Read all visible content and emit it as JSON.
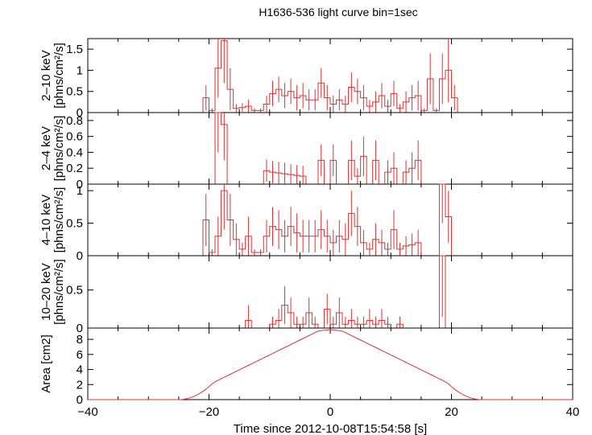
{
  "chart_data": {
    "type": "line",
    "title": "H1636-536 light curve bin=1sec",
    "xlabel": "Time since 2012-10-08T15:54:58 [s]",
    "xlim": [
      -40,
      40
    ],
    "xticks": [
      -40,
      -20,
      0,
      20,
      40
    ],
    "color": "#e03030",
    "panels": [
      {
        "ylabel_top": "[phhns/cm²/s]",
        "ylabel": "2–10 keV",
        "unit": "[phns/cm²/s]",
        "ylim": [
          0,
          1.75
        ],
        "yticks": [
          0,
          0.5,
          1,
          1.5
        ],
        "yticklabels": [
          "0",
          "0.5",
          "1",
          "1.5"
        ],
        "series": [
          {
            "t": -21,
            "v": 0.35,
            "e": 0.3
          },
          {
            "t": -20,
            "v": 0.05,
            "e": 0.05
          },
          {
            "t": -19,
            "v": 1.05,
            "e": 0.7
          },
          {
            "t": -18,
            "v": 1.7,
            "e": 1.0
          },
          {
            "t": -17,
            "v": 0.55,
            "e": 0.5
          },
          {
            "t": -16,
            "v": 0.1,
            "e": 0.1
          },
          {
            "t": -15,
            "v": 0.12,
            "e": 0.1
          },
          {
            "t": -14,
            "v": 0.15,
            "e": 0.15
          },
          {
            "t": -13,
            "v": 0.05,
            "e": 0.05
          },
          {
            "t": -12,
            "v": 0.05,
            "e": 0.05
          },
          {
            "t": -11,
            "v": 0.2,
            "e": 0.2
          },
          {
            "t": -10,
            "v": 0.45,
            "e": 0.3
          },
          {
            "t": -9,
            "v": 0.55,
            "e": 0.3
          },
          {
            "t": -8,
            "v": 0.4,
            "e": 0.3
          },
          {
            "t": -7,
            "v": 0.5,
            "e": 0.3
          },
          {
            "t": -6,
            "v": 0.35,
            "e": 0.3
          },
          {
            "t": -5,
            "v": 0.4,
            "e": 0.3
          },
          {
            "t": -4,
            "v": 0.3,
            "e": 0.25
          },
          {
            "t": -3,
            "v": 0.3,
            "e": 0.25
          },
          {
            "t": -2,
            "v": 0.7,
            "e": 0.35
          },
          {
            "t": -1,
            "v": 0.35,
            "e": 0.3
          },
          {
            "t": 0,
            "v": 0.2,
            "e": 0.2
          },
          {
            "t": 1,
            "v": 0.3,
            "e": 0.25
          },
          {
            "t": 2,
            "v": 0.2,
            "e": 0.2
          },
          {
            "t": 3,
            "v": 0.6,
            "e": 0.35
          },
          {
            "t": 4,
            "v": 0.5,
            "e": 0.3
          },
          {
            "t": 5,
            "v": 0.35,
            "e": 0.3
          },
          {
            "t": 6,
            "v": 0.15,
            "e": 0.15
          },
          {
            "t": 7,
            "v": 0.25,
            "e": 0.25
          },
          {
            "t": 8,
            "v": 0.4,
            "e": 0.3
          },
          {
            "t": 9,
            "v": 0.15,
            "e": 0.15
          },
          {
            "t": 10,
            "v": 0.45,
            "e": 0.3
          },
          {
            "t": 11,
            "v": 0.1,
            "e": 0.1
          },
          {
            "t": 12,
            "v": 0.25,
            "e": 0.25
          },
          {
            "t": 13,
            "v": 0.35,
            "e": 0.3
          },
          {
            "t": 14,
            "v": 0.4,
            "e": 0.35
          },
          {
            "t": 15,
            "v": 0.05,
            "e": 0.05
          },
          {
            "t": 16,
            "v": 0.8,
            "e": 0.6
          },
          {
            "t": 17,
            "v": 0.05,
            "e": 0.05
          },
          {
            "t": 18,
            "v": 0.8,
            "e": 0.6
          },
          {
            "t": 19,
            "v": 1.0,
            "e": 0.75
          },
          {
            "t": 20,
            "v": 0.35,
            "e": 0.3
          }
        ]
      },
      {
        "ylabel": "2–4 keV",
        "unit": "[phns/cm²/s]",
        "ylim": [
          0,
          0.9
        ],
        "yticks": [
          0,
          0.2,
          0.4,
          0.6,
          0.8
        ],
        "yticklabels": [
          "0",
          "0.2",
          "0.4",
          "0.6",
          "0.8"
        ],
        "series": [
          {
            "t": -19,
            "v": 0.9,
            "e": 0.5
          },
          {
            "t": -18,
            "v": 0.75,
            "e": 0.45
          },
          {
            "t": -11,
            "v": 0.17,
            "e": 0.14
          },
          {
            "t": -10,
            "v": 0.15,
            "e": 0.14
          },
          {
            "t": -9,
            "v": 0.14,
            "e": 0.14
          },
          {
            "t": -8,
            "v": 0.13,
            "e": 0.14
          },
          {
            "t": -7,
            "v": 0.12,
            "e": 0.13
          },
          {
            "t": -6,
            "v": 0.11,
            "e": 0.13
          },
          {
            "t": -5,
            "v": 0.1,
            "e": 0.13
          },
          {
            "t": -2,
            "v": 0.3,
            "e": 0.2
          },
          {
            "t": 0,
            "v": 0.3,
            "e": 0.2
          },
          {
            "t": 3,
            "v": 0.3,
            "e": 0.25
          },
          {
            "t": 4,
            "v": 0.1,
            "e": 0.1
          },
          {
            "t": 5,
            "v": 0.35,
            "e": 0.25
          },
          {
            "t": 7,
            "v": 0.3,
            "e": 0.25
          },
          {
            "t": 9,
            "v": 0.15,
            "e": 0.15
          },
          {
            "t": 10,
            "v": 0.2,
            "e": 0.2
          },
          {
            "t": 12,
            "v": 0.15,
            "e": 0.15
          },
          {
            "t": 13,
            "v": 0.2,
            "e": 0.2
          },
          {
            "t": 14,
            "v": 0.3,
            "e": 0.25
          }
        ]
      },
      {
        "ylabel": "4–10 keV",
        "unit": "[phns/cm²/s]",
        "ylim": [
          0,
          1.1
        ],
        "yticks": [
          0,
          0.5,
          1
        ],
        "yticklabels": [
          "0",
          "0.5",
          "1"
        ],
        "series": [
          {
            "t": -21,
            "v": 0.55,
            "e": 0.4
          },
          {
            "t": -20,
            "v": 0.05,
            "e": 0.05
          },
          {
            "t": -19,
            "v": 0.3,
            "e": 0.3
          },
          {
            "t": -18,
            "v": 1.0,
            "e": 0.6
          },
          {
            "t": -17,
            "v": 0.55,
            "e": 0.4
          },
          {
            "t": -16,
            "v": 0.25,
            "e": 0.25
          },
          {
            "t": -15,
            "v": 0.1,
            "e": 0.1
          },
          {
            "t": -14,
            "v": 0.3,
            "e": 0.3
          },
          {
            "t": -13,
            "v": 0.05,
            "e": 0.05
          },
          {
            "t": -12,
            "v": 0.05,
            "e": 0.05
          },
          {
            "t": -11,
            "v": 0.3,
            "e": 0.25
          },
          {
            "t": -10,
            "v": 0.45,
            "e": 0.3
          },
          {
            "t": -9,
            "v": 0.4,
            "e": 0.3
          },
          {
            "t": -8,
            "v": 0.3,
            "e": 0.25
          },
          {
            "t": -7,
            "v": 0.45,
            "e": 0.3
          },
          {
            "t": -6,
            "v": 0.35,
            "e": 0.3
          },
          {
            "t": -5,
            "v": 0.3,
            "e": 0.25
          },
          {
            "t": -4,
            "v": 0.3,
            "e": 0.25
          },
          {
            "t": -3,
            "v": 0.3,
            "e": 0.25
          },
          {
            "t": -2,
            "v": 0.4,
            "e": 0.3
          },
          {
            "t": -1,
            "v": 0.3,
            "e": 0.25
          },
          {
            "t": 0,
            "v": 0.2,
            "e": 0.2
          },
          {
            "t": 1,
            "v": 0.3,
            "e": 0.25
          },
          {
            "t": 2,
            "v": 0.25,
            "e": 0.25
          },
          {
            "t": 3,
            "v": 0.65,
            "e": 0.35
          },
          {
            "t": 4,
            "v": 0.45,
            "e": 0.3
          },
          {
            "t": 5,
            "v": 0.2,
            "e": 0.2
          },
          {
            "t": 6,
            "v": 0.1,
            "e": 0.1
          },
          {
            "t": 7,
            "v": 0.25,
            "e": 0.25
          },
          {
            "t": 8,
            "v": 0.2,
            "e": 0.2
          },
          {
            "t": 9,
            "v": 0.1,
            "e": 0.1
          },
          {
            "t": 10,
            "v": 0.4,
            "e": 0.3
          },
          {
            "t": 11,
            "v": 0.1,
            "e": 0.1
          },
          {
            "t": 12,
            "v": 0.15,
            "e": 0.15
          },
          {
            "t": 13,
            "v": 0.17,
            "e": 0.17
          },
          {
            "t": 14,
            "v": 0.2,
            "e": 0.2
          },
          {
            "t": 18,
            "v": 1.1,
            "e": 0.6
          },
          {
            "t": 19,
            "v": 0.6,
            "e": 0.4
          }
        ]
      },
      {
        "ylabel": "10–20 keV",
        "unit": "[phns/cm²/s]",
        "ylim": [
          0,
          0.95
        ],
        "yticks": [
          0,
          0.5
        ],
        "yticklabels": [
          "0",
          "0.5"
        ],
        "series": [
          {
            "t": -14,
            "v": 0.1,
            "e": 0.2
          },
          {
            "t": -10,
            "v": 0.05,
            "e": 0.1
          },
          {
            "t": -9,
            "v": 0.1,
            "e": 0.15
          },
          {
            "t": -8,
            "v": 0.3,
            "e": 0.25
          },
          {
            "t": -7,
            "v": 0.2,
            "e": 0.2
          },
          {
            "t": -6,
            "v": 0.05,
            "e": 0.1
          },
          {
            "t": -5,
            "v": 0.05,
            "e": 0.1
          },
          {
            "t": -4,
            "v": 0.2,
            "e": 0.2
          },
          {
            "t": -3,
            "v": 0.05,
            "e": 0.1
          },
          {
            "t": -1,
            "v": 0.25,
            "e": 0.2
          },
          {
            "t": 0,
            "v": 0.05,
            "e": 0.1
          },
          {
            "t": 1,
            "v": 0.2,
            "e": 0.2
          },
          {
            "t": 2,
            "v": 0.05,
            "e": 0.1
          },
          {
            "t": 3,
            "v": 0.1,
            "e": 0.15
          },
          {
            "t": 4,
            "v": 0.05,
            "e": 0.1
          },
          {
            "t": 5,
            "v": 0.05,
            "e": 0.1
          },
          {
            "t": 6,
            "v": 0.1,
            "e": 0.15
          },
          {
            "t": 7,
            "v": 0.05,
            "e": 0.1
          },
          {
            "t": 8,
            "v": 0.1,
            "e": 0.15
          },
          {
            "t": 9,
            "v": 0.05,
            "e": 0.1
          },
          {
            "t": 11,
            "v": 0.05,
            "e": 0.1
          },
          {
            "t": 18,
            "v": 0.95,
            "e": 0.8
          }
        ]
      },
      {
        "ylabel": "Area [cm2]",
        "unit": "",
        "ylim": [
          0,
          9.5
        ],
        "yticks": [
          0,
          2,
          4,
          6,
          8
        ],
        "yticklabels": [
          "0",
          "2",
          "4",
          "6",
          "8"
        ],
        "curve": {
          "center": 0,
          "peak": 9.3,
          "flat_until": 2,
          "zero_at": 25
        }
      }
    ]
  }
}
